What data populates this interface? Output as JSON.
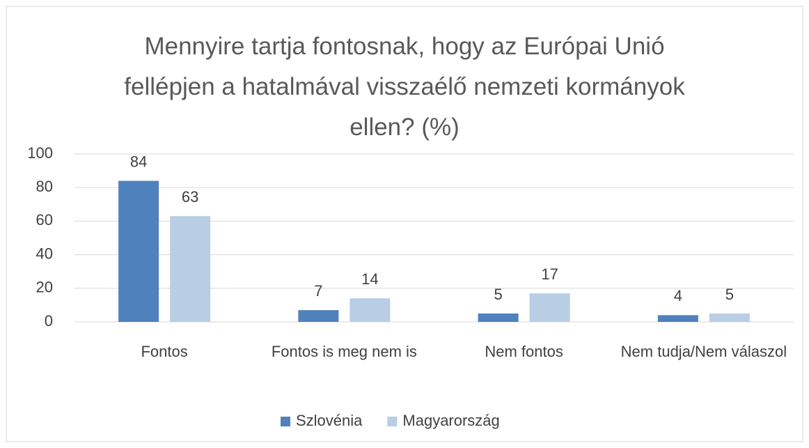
{
  "chart_data": {
    "type": "bar",
    "title": "Mennyire tartja fontosnak, hogy az Európai Unió fellépjen a hatalmával visszaélő nemzeti kormányok ellen? (%)",
    "categories": [
      "Fontos",
      "Fontos is meg nem is",
      "Nem fontos",
      "Nem tudja/Nem válaszol"
    ],
    "series": [
      {
        "name": "Szlovénia",
        "color": "#4f81bd",
        "values": [
          84,
          7,
          5,
          4
        ]
      },
      {
        "name": "Magyarország",
        "color": "#b9cde5",
        "values": [
          63,
          14,
          17,
          5
        ]
      }
    ],
    "ylim": [
      0,
      100
    ],
    "yticks": [
      0,
      20,
      40,
      60,
      80,
      100
    ],
    "grid": true,
    "legend": "bottom"
  }
}
